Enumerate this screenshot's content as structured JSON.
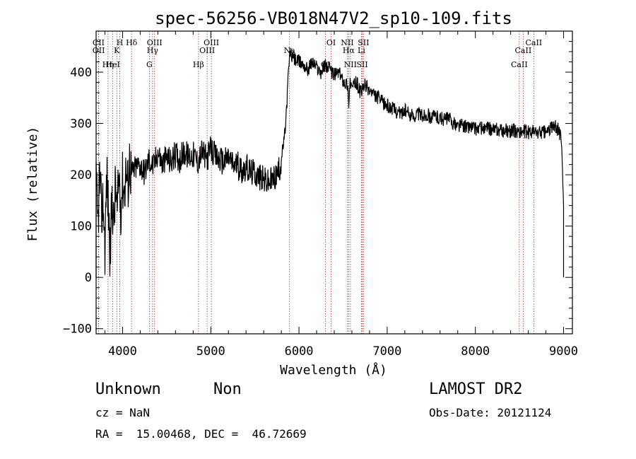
{
  "chart_data": {
    "type": "line",
    "title": "spec-56256-VB018N47V2_sp10-109.fits",
    "xlabel": "Wavelength (Å)",
    "ylabel": "Flux (relative)",
    "xlim": [
      3700,
      9100
    ],
    "ylim": [
      -110,
      480
    ],
    "xticks": [
      4000,
      5000,
      6000,
      7000,
      8000,
      9000
    ],
    "yticks": [
      -100,
      0,
      100,
      200,
      300,
      400
    ],
    "series": [
      {
        "x": [
          3700,
          3720,
          3740,
          3760,
          3780,
          3800,
          3820,
          3840,
          3860,
          3880,
          3900,
          3920,
          3940,
          3960,
          3980,
          4000,
          4020,
          4040,
          4060,
          4080,
          4100,
          4150,
          4200,
          4250,
          4300,
          4350,
          4400,
          4450,
          4500,
          4550,
          4600,
          4650,
          4700,
          4750,
          4800,
          4850,
          4900,
          4950,
          5000,
          5050,
          5100,
          5150,
          5200,
          5250,
          5300,
          5350,
          5400,
          5450,
          5500,
          5550,
          5600,
          5650,
          5700,
          5750,
          5780,
          5800,
          5820,
          5840,
          5860,
          5880,
          5900,
          5920,
          5950,
          6000,
          6050,
          6100,
          6150,
          6200,
          6250,
          6300,
          6350,
          6400,
          6450,
          6500,
          6550,
          6563,
          6580,
          6600,
          6650,
          6700,
          6750,
          6800,
          6850,
          6900,
          6950,
          7000,
          7050,
          7100,
          7150,
          7200,
          7250,
          7300,
          7350,
          7400,
          7450,
          7500,
          7550,
          7600,
          7650,
          7700,
          7750,
          7800,
          7850,
          7900,
          7950,
          8000,
          8050,
          8100,
          8150,
          8200,
          8250,
          8300,
          8350,
          8400,
          8450,
          8500,
          8550,
          8600,
          8650,
          8700,
          8750,
          8800,
          8850,
          8900,
          8950,
          8980,
          9000
        ],
        "y": [
          180,
          100,
          200,
          120,
          150,
          60,
          200,
          130,
          40,
          160,
          100,
          180,
          120,
          200,
          140,
          190,
          170,
          210,
          180,
          230,
          200,
          215,
          220,
          205,
          230,
          215,
          245,
          220,
          235,
          225,
          240,
          230,
          245,
          235,
          240,
          225,
          245,
          230,
          250,
          235,
          230,
          225,
          235,
          220,
          220,
          210,
          215,
          205,
          205,
          195,
          190,
          185,
          190,
          200,
          210,
          230,
          255,
          280,
          330,
          400,
          440,
          430,
          425,
          420,
          415,
          405,
          420,
          410,
          400,
          415,
          405,
          395,
          400,
          385,
          375,
          340,
          385,
          370,
          380,
          360,
          375,
          365,
          355,
          350,
          340,
          335,
          330,
          325,
          320,
          325,
          318,
          315,
          320,
          315,
          318,
          312,
          315,
          310,
          308,
          310,
          300,
          295,
          298,
          292,
          295,
          290,
          292,
          288,
          290,
          287,
          288,
          285,
          287,
          285,
          286,
          284,
          285,
          283,
          285,
          282,
          284,
          283,
          290,
          295,
          285,
          265,
          140
        ]
      }
    ],
    "annotations": [
      {
        "label": "CII",
        "wavelength": 3727
      },
      {
        "label": "OII",
        "wavelength": 3729
      },
      {
        "label": "Hη",
        "wavelength": 3835
      },
      {
        "label": "H",
        "wavelength": 3969
      },
      {
        "label": "K",
        "wavelength": 3934
      },
      {
        "label": "HeI",
        "wavelength": 3889
      },
      {
        "label": "Hδ",
        "wavelength": 4102
      },
      {
        "label": "Hγ",
        "wavelength": 4340
      },
      {
        "label": "G",
        "wavelength": 4304
      },
      {
        "label": "OIII",
        "wavelength": 4363
      },
      {
        "label": "OIII",
        "wavelength": 4959
      },
      {
        "label": "Hβ",
        "wavelength": 4861
      },
      {
        "label": "OIII",
        "wavelength": 5007
      },
      {
        "label": "Na",
        "wavelength": 5893
      },
      {
        "label": "OI",
        "wavelength": 6300
      },
      {
        "label": "OI",
        "wavelength": 6364
      },
      {
        "label": "Hα",
        "wavelength": 6563
      },
      {
        "label": "SII",
        "wavelength": 6717
      },
      {
        "label": "NII",
        "wavelength": 6548
      },
      {
        "label": "Li",
        "wavelength": 6708
      },
      {
        "label": "NII",
        "wavelength": 6583
      },
      {
        "label": "SII",
        "wavelength": 6731
      },
      {
        "label": "CaII",
        "wavelength": 8542
      },
      {
        "label": "CaII",
        "wavelength": 8498
      },
      {
        "label": "CaII",
        "wavelength": 8662
      }
    ]
  },
  "info": {
    "class_label": "Unknown",
    "subclass_label": "Non",
    "survey": "LAMOST DR2",
    "redshift": "cz = NaN",
    "obs_date": "Obs-Date: 20121124",
    "coords": "RA =  15.00468, DEC =  46.72669"
  }
}
